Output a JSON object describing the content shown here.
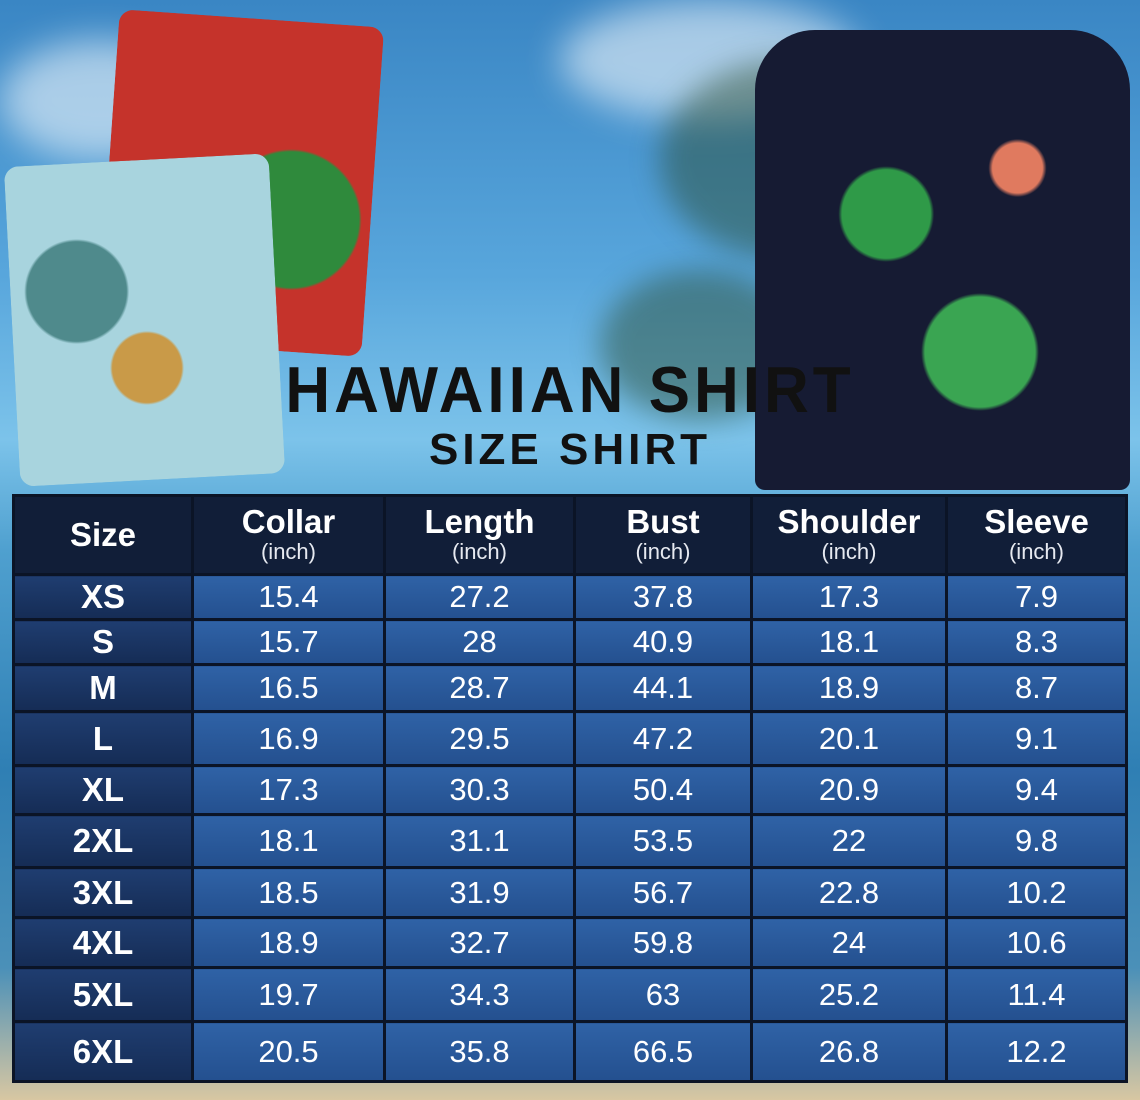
{
  "title": "HAWAIIAN SHIRT",
  "subtitle": "SIZE SHIRT",
  "table": {
    "headers": [
      {
        "label": "Size",
        "unit": ""
      },
      {
        "label": "Collar",
        "unit": "(inch)"
      },
      {
        "label": "Length",
        "unit": "(inch)"
      },
      {
        "label": "Bust",
        "unit": "(inch)"
      },
      {
        "label": "Shoulder",
        "unit": "(inch)"
      },
      {
        "label": "Sleeve",
        "unit": "(inch)"
      }
    ],
    "rows": [
      [
        "XS",
        "15.4",
        "27.2",
        "37.8",
        "17.3",
        "7.9"
      ],
      [
        "S",
        "15.7",
        "28",
        "40.9",
        "18.1",
        "8.3"
      ],
      [
        "M",
        "16.5",
        "28.7",
        "44.1",
        "18.9",
        "8.7"
      ],
      [
        "L",
        "16.9",
        "29.5",
        "47.2",
        "20.1",
        "9.1"
      ],
      [
        "XL",
        "17.3",
        "30.3",
        "50.4",
        "20.9",
        "9.4"
      ],
      [
        "2XL",
        "18.1",
        "31.1",
        "53.5",
        "22",
        "9.8"
      ],
      [
        "3XL",
        "18.5",
        "31.9",
        "56.7",
        "22.8",
        "10.2"
      ],
      [
        "4XL",
        "18.9",
        "32.7",
        "59.8",
        "24",
        "10.6"
      ],
      [
        "5XL",
        "19.7",
        "34.3",
        "63",
        "25.2",
        "11.4"
      ],
      [
        "6XL",
        "20.5",
        "35.8",
        "66.5",
        "26.8",
        "12.2"
      ]
    ]
  },
  "colors": {
    "header_bg": "#111e38",
    "size_cell": "#1a3462",
    "data_cell": "#2a5898"
  }
}
